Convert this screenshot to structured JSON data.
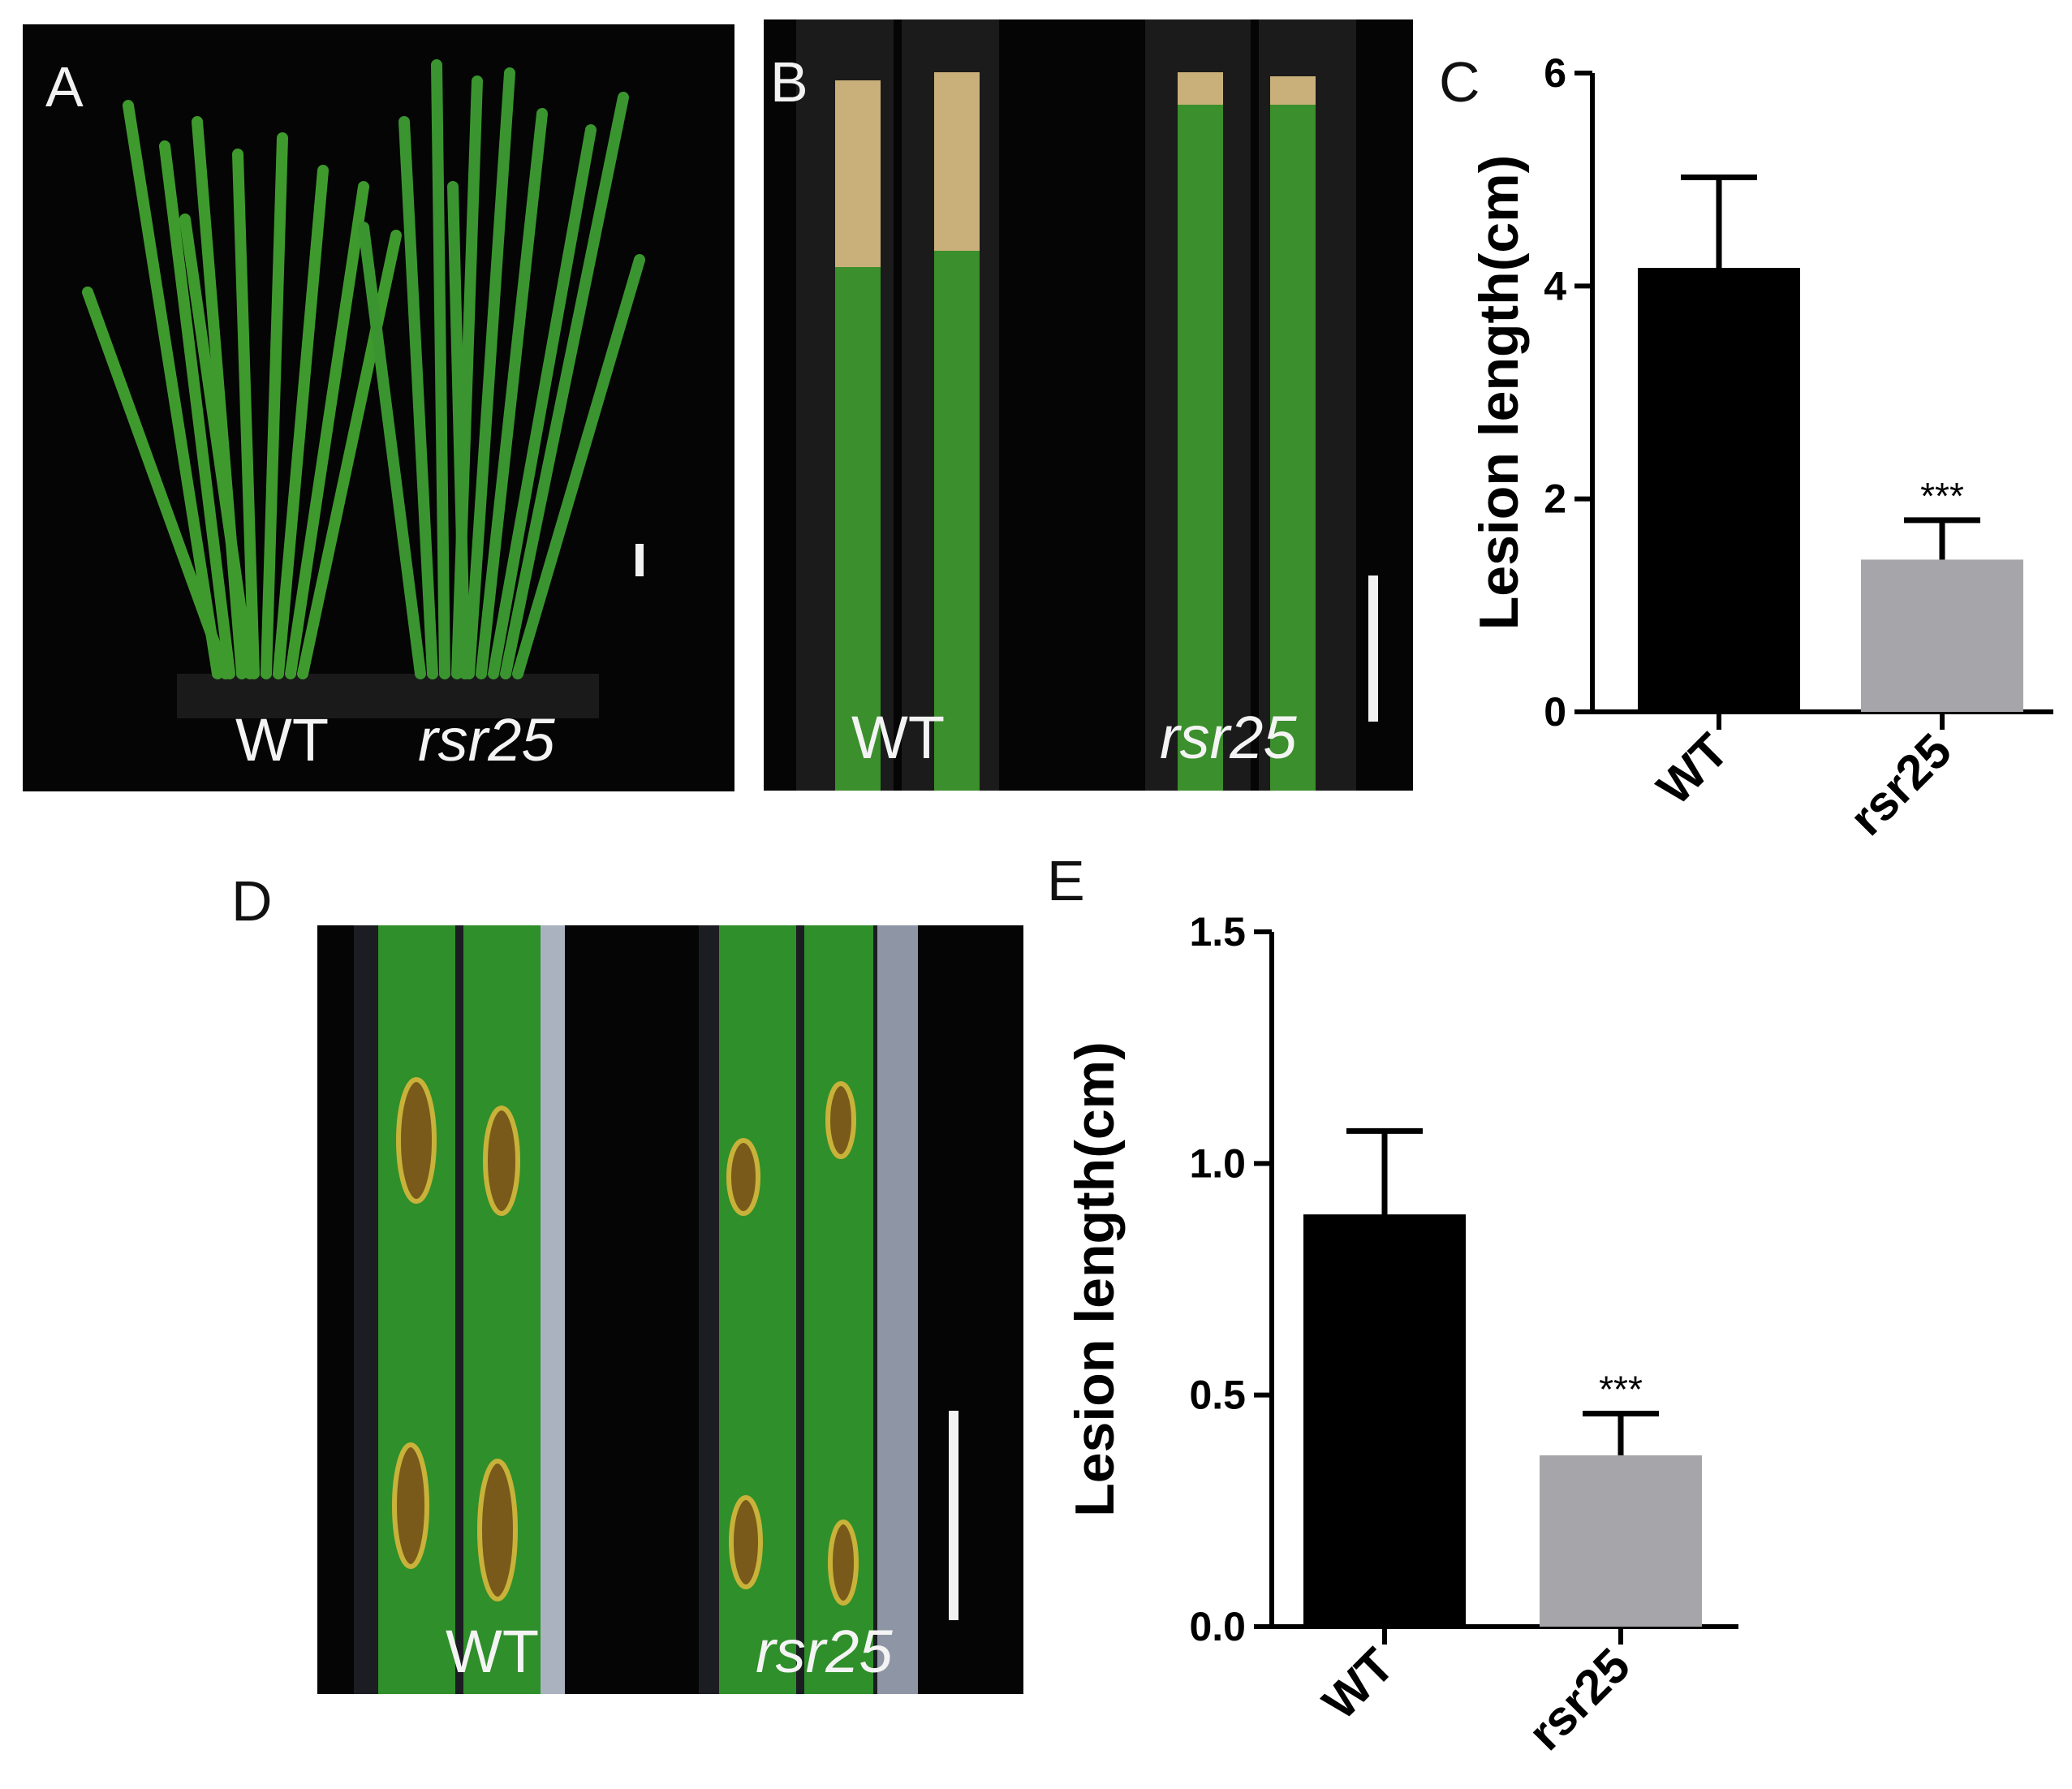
{
  "panels": {
    "a": {
      "letter": "A",
      "label_wt": "WT",
      "label_mut": "rsr25"
    },
    "b": {
      "letter": "B",
      "label_wt": "WT",
      "label_mut": "rsr25"
    },
    "c": {
      "letter": "C"
    },
    "d": {
      "letter": "D",
      "label_wt": "WT",
      "label_mut": "rsr25"
    },
    "e": {
      "letter": "E"
    }
  },
  "colors": {
    "wt_bar": "#000000",
    "mutant_bar": "#a6a6aa",
    "photo_background": "#050505",
    "leaf_green": "#2f8f2a"
  },
  "chart_data": [
    {
      "panel": "C",
      "type": "bar",
      "categories": [
        "WT",
        "rsr25"
      ],
      "values": [
        4.17,
        1.43
      ],
      "error": [
        0.85,
        0.37
      ],
      "significance": [
        "",
        "***"
      ],
      "ylabel": "Lesion length(cm)",
      "xlabel": "",
      "ylim": [
        0,
        6
      ],
      "yticks": [
        0,
        2,
        4,
        6
      ],
      "ytick_labels": [
        "0",
        "2",
        "4",
        "6"
      ],
      "grid": false,
      "bar_colors": [
        "#000000",
        "#a6a6aa"
      ]
    },
    {
      "panel": "E",
      "type": "bar",
      "categories": [
        "WT",
        "rsr25"
      ],
      "values": [
        0.89,
        0.37
      ],
      "error": [
        0.18,
        0.09
      ],
      "significance": [
        "",
        "***"
      ],
      "ylabel": "Lesion length(cm)",
      "xlabel": "",
      "ylim": [
        0,
        1.5
      ],
      "yticks": [
        0,
        0.5,
        1.0,
        1.5
      ],
      "ytick_labels": [
        "0.0",
        "0.5",
        "1.0",
        "1.5"
      ],
      "grid": false,
      "bar_colors": [
        "#000000",
        "#a6a6aa"
      ]
    }
  ]
}
